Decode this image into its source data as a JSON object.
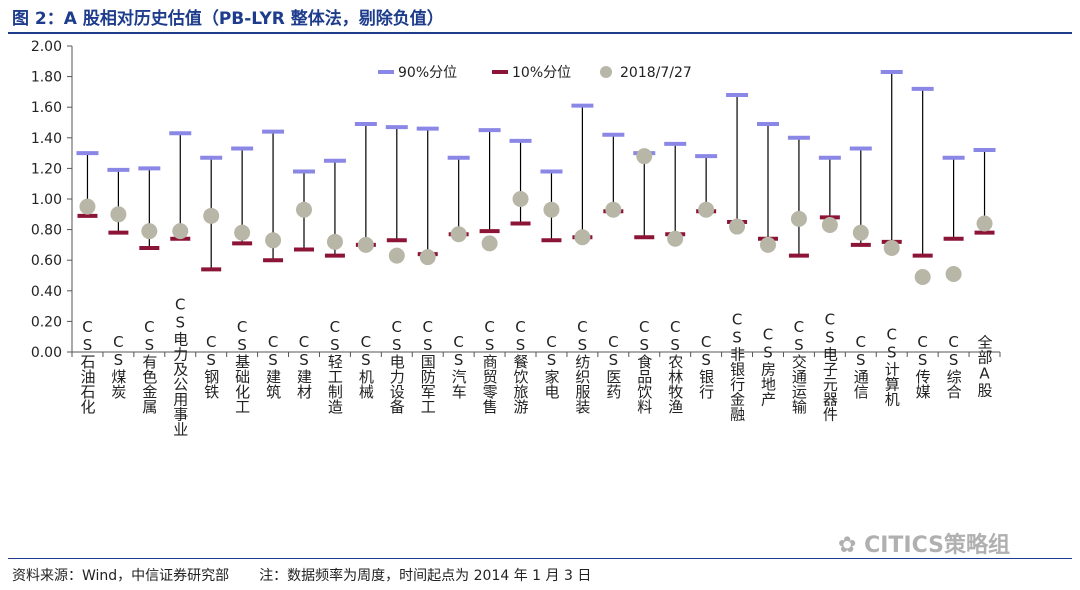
{
  "figure": {
    "title": "图 2：A 股相对历史估值（PB-LYR 整体法，剔除负值）",
    "source": "资料来源：Wind，中信证券研究部",
    "note": "注：数据频率为周度，时间起点为 2014 年 1 月 3 日",
    "watermark": "CITICS策略组"
  },
  "colors": {
    "p90": "#8b87e6",
    "p10": "#8c1436",
    "current": "#b8b6a6",
    "range_line": "#000000",
    "title": "#1e3c8c"
  },
  "chart_data": {
    "type": "range",
    "ylim": [
      0,
      2.0
    ],
    "yticks": [
      0.0,
      0.2,
      0.4,
      0.6,
      0.8,
      1.0,
      1.2,
      1.4,
      1.6,
      1.8,
      2.0
    ],
    "ytick_labels": [
      "0.00",
      "0.20",
      "0.40",
      "0.60",
      "0.80",
      "1.00",
      "1.20",
      "1.40",
      "1.60",
      "1.80",
      "2.00"
    ],
    "legend": [
      "90%分位",
      "10%分位",
      "2018/7/27"
    ],
    "categories": [
      "CS石油石化",
      "CS煤炭",
      "CS有色金属",
      "CS电力及公用事业",
      "CS钢铁",
      "CS基础化工",
      "CS建筑",
      "CS建材",
      "CS轻工制造",
      "CS机械",
      "CS电力设备",
      "CS国防军工",
      "CS汽车",
      "CS商贸零售",
      "CS餐饮旅游",
      "CS家电",
      "CS纺织服装",
      "CS医药",
      "CS食品饮料",
      "CS农林牧渔",
      "CS银行",
      "CS非银行金融",
      "CS房地产",
      "CS交通运输",
      "CS电子元器件",
      "CS通信",
      "CS计算机",
      "CS传媒",
      "CS综合",
      "全部A股"
    ],
    "series": [
      {
        "name": "90%分位",
        "values": [
          1.3,
          1.19,
          1.2,
          1.43,
          1.27,
          1.33,
          1.44,
          1.18,
          1.25,
          1.49,
          1.47,
          1.46,
          1.27,
          1.45,
          1.38,
          1.18,
          1.61,
          1.42,
          1.3,
          1.36,
          1.28,
          1.68,
          1.49,
          1.4,
          1.27,
          1.33,
          1.83,
          1.72,
          1.27,
          1.32
        ]
      },
      {
        "name": "10%分位",
        "values": [
          0.89,
          0.78,
          0.68,
          0.74,
          0.54,
          0.71,
          0.6,
          0.67,
          0.63,
          0.7,
          0.73,
          0.64,
          0.77,
          0.79,
          0.84,
          0.73,
          0.75,
          0.92,
          0.75,
          0.77,
          0.92,
          0.85,
          0.74,
          0.63,
          0.88,
          0.7,
          0.72,
          0.63,
          0.74,
          0.78
        ]
      },
      {
        "name": "2018/7/27",
        "values": [
          0.95,
          0.9,
          0.79,
          0.79,
          0.89,
          0.78,
          0.73,
          0.93,
          0.72,
          0.7,
          0.63,
          0.62,
          0.77,
          0.71,
          1.0,
          0.93,
          0.75,
          0.93,
          1.28,
          0.74,
          0.93,
          0.82,
          0.7,
          0.87,
          0.83,
          0.78,
          0.68,
          0.49,
          0.51,
          0.84
        ]
      }
    ]
  }
}
